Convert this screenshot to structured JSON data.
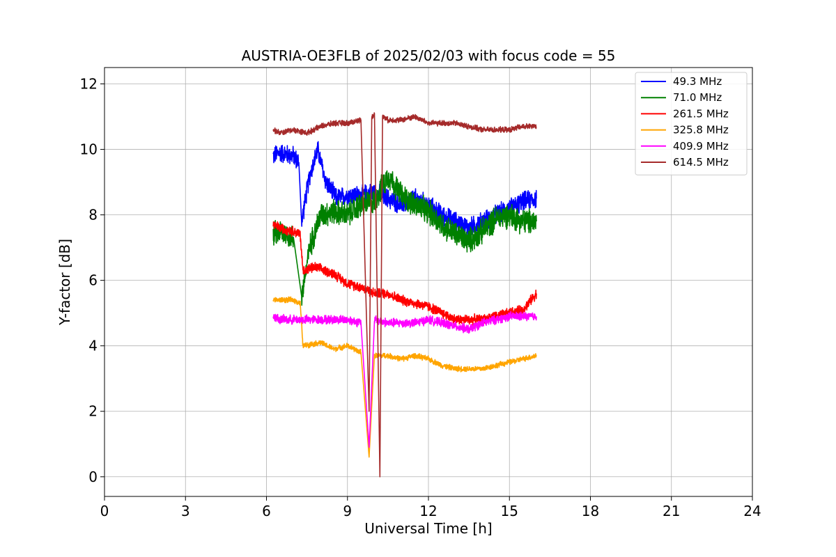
{
  "chart_data": {
    "type": "line",
    "title": "AUSTRIA-OE3FLB of 2025/02/03 with focus code = 55",
    "xlabel": "Universal Time [h]",
    "ylabel": "Y-factor [dB]",
    "xlim": [
      0,
      24
    ],
    "ylim": [
      -0.6,
      12.5
    ],
    "xticks": [
      0,
      3,
      6,
      9,
      12,
      15,
      18,
      21,
      24
    ],
    "yticks": [
      0,
      2,
      4,
      6,
      8,
      10,
      12
    ],
    "grid": true,
    "legend_position": "top-right",
    "series": [
      {
        "name": "  49.3 MHz",
        "color": "#0000ff",
        "noise": 0.35,
        "x": [
          6.25,
          6.5,
          7.0,
          7.2,
          7.3,
          7.6,
          7.9,
          8.2,
          8.6,
          9.0,
          9.5,
          10.0,
          10.5,
          11.0,
          11.5,
          12.0,
          12.5,
          13.0,
          13.5,
          14.0,
          14.5,
          15.0,
          15.5,
          16.0
        ],
        "y": [
          9.8,
          9.9,
          9.8,
          9.6,
          7.8,
          9.2,
          10.0,
          9.0,
          8.5,
          8.6,
          8.6,
          8.7,
          8.5,
          8.3,
          8.5,
          8.3,
          8.0,
          7.8,
          7.6,
          7.8,
          8.0,
          8.2,
          8.4,
          8.5
        ]
      },
      {
        "name": "  71.0 MHz",
        "color": "#008000",
        "noise": 0.45,
        "x": [
          6.25,
          6.5,
          7.0,
          7.3,
          7.6,
          8.0,
          8.5,
          9.0,
          9.5,
          10.0,
          10.5,
          11.0,
          11.5,
          12.0,
          12.5,
          13.0,
          13.5,
          14.0,
          14.5,
          15.0,
          15.5,
          16.0
        ],
        "y": [
          7.4,
          7.5,
          7.3,
          5.5,
          7.0,
          8.0,
          8.1,
          8.0,
          8.3,
          8.4,
          9.2,
          8.6,
          8.3,
          8.1,
          7.7,
          7.4,
          7.2,
          7.5,
          7.9,
          8.0,
          7.8,
          7.8
        ]
      },
      {
        "name": " 261.5 MHz",
        "color": "#ff0000",
        "noise": 0.18,
        "x": [
          6.25,
          6.5,
          7.0,
          7.25,
          7.35,
          7.8,
          8.5,
          9.0,
          9.5,
          10.0,
          10.5,
          11.0,
          11.5,
          12.0,
          12.5,
          13.0,
          13.5,
          14.0,
          14.5,
          15.0,
          15.5,
          16.0
        ],
        "y": [
          7.7,
          7.6,
          7.5,
          7.4,
          6.3,
          6.4,
          6.2,
          5.9,
          5.8,
          5.6,
          5.6,
          5.4,
          5.3,
          5.2,
          5.0,
          4.8,
          4.8,
          4.8,
          4.9,
          5.0,
          5.1,
          5.6
        ]
      },
      {
        "name": " 325.8 MHz",
        "color": "#ffa500",
        "noise": 0.1,
        "x": [
          6.25,
          6.5,
          7.0,
          7.25,
          7.35,
          8.0,
          8.5,
          9.0,
          9.5,
          9.8,
          10.0,
          10.5,
          11.0,
          11.5,
          12.0,
          12.5,
          13.0,
          13.5,
          14.0,
          14.5,
          15.0,
          15.5,
          16.0
        ],
        "y": [
          5.4,
          5.4,
          5.4,
          5.3,
          4.0,
          4.1,
          3.9,
          4.0,
          3.8,
          0.6,
          3.7,
          3.7,
          3.6,
          3.7,
          3.6,
          3.4,
          3.3,
          3.3,
          3.3,
          3.4,
          3.5,
          3.6,
          3.7
        ]
      },
      {
        "name": " 409.9 MHz",
        "color": "#ff00ff",
        "noise": 0.16,
        "x": [
          6.25,
          6.5,
          7.0,
          7.5,
          8.0,
          8.5,
          9.0,
          9.5,
          9.8,
          10.0,
          10.5,
          11.0,
          11.5,
          12.0,
          12.5,
          13.0,
          13.5,
          14.0,
          14.5,
          15.0,
          15.5,
          16.0
        ],
        "y": [
          4.9,
          4.8,
          4.8,
          4.8,
          4.8,
          4.8,
          4.8,
          4.7,
          0.9,
          4.8,
          4.7,
          4.7,
          4.7,
          4.8,
          4.7,
          4.6,
          4.5,
          4.7,
          4.8,
          4.9,
          4.9,
          4.9
        ]
      },
      {
        "name": " 614.5 MHz",
        "color": "#a52a2a",
        "noise": 0.1,
        "x": [
          6.25,
          6.5,
          7.0,
          7.5,
          8.0,
          8.5,
          9.0,
          9.5,
          9.8,
          9.9,
          10.0,
          10.2,
          10.3,
          10.5,
          11.0,
          11.5,
          12.0,
          12.5,
          13.0,
          13.5,
          14.0,
          14.5,
          15.0,
          15.5,
          16.0
        ],
        "y": [
          10.6,
          10.5,
          10.6,
          10.5,
          10.7,
          10.8,
          10.8,
          10.9,
          2.0,
          11.0,
          11.1,
          0.0,
          11.0,
          10.9,
          10.9,
          11.0,
          10.8,
          10.8,
          10.8,
          10.7,
          10.6,
          10.6,
          10.6,
          10.7,
          10.7
        ]
      }
    ]
  }
}
